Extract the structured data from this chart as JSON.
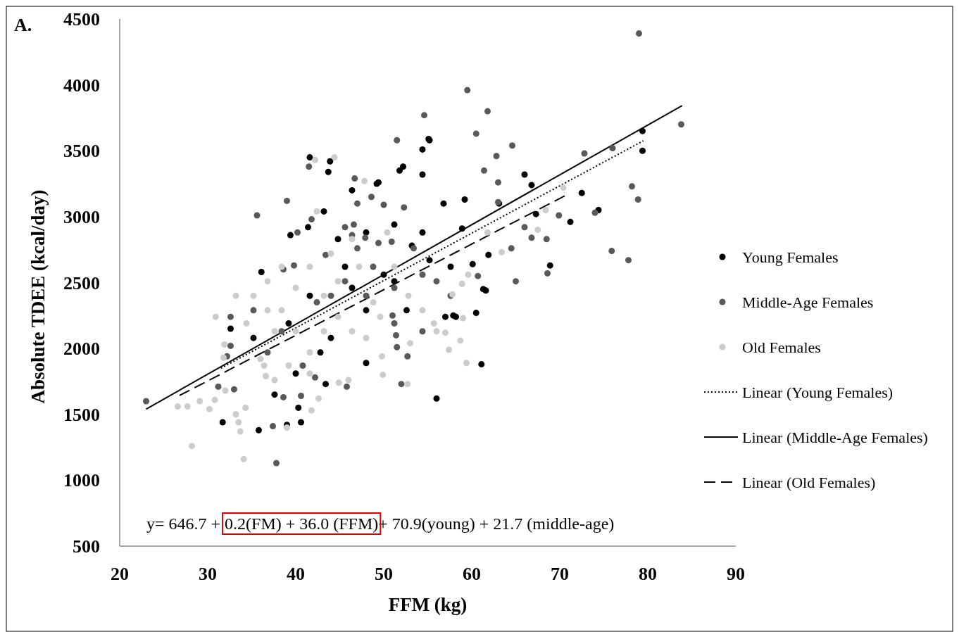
{
  "chart_data": {
    "type": "scatter",
    "title": "A.",
    "xlabel": "FFM (kg)",
    "ylabel": "Absolute TDEE (kcal/day)",
    "xlim": [
      20,
      90
    ],
    "xticks": [
      20,
      30,
      40,
      50,
      60,
      70,
      80,
      90
    ],
    "ylim": [
      500,
      4500
    ],
    "yticks": [
      500,
      1000,
      1500,
      2000,
      2500,
      3000,
      3500,
      4000,
      4500
    ],
    "grid": false,
    "legend": "right",
    "marker": "circle",
    "annotations": [
      "y= 646.7 + 0.2(FM) + 36.0 (FFM)+ 70.9(young) + 21.7 (middle-age)"
    ],
    "series": [
      {
        "name": "Young Females",
        "color": "#000000",
        "x": [
          41.6,
          43.9,
          55.1,
          54.4,
          52.2,
          51.8,
          49.4,
          79.4,
          79.4,
          66.0,
          66.8,
          72.5,
          71.2,
          67.3,
          68.9,
          61.6,
          74.4,
          55.2,
          54.4,
          59.2,
          58.9,
          60.1,
          57.0,
          57.9,
          61.1,
          56.0,
          35.8,
          31.7,
          39.0,
          40.6,
          40.3,
          32.6,
          36.1,
          39.4,
          41.4,
          43.7,
          52.6,
          43.4,
          48.0,
          61.3,
          60.5,
          58.2,
          61.9,
          63.1,
          43.2,
          46.4,
          49.2,
          44.8,
          48.0,
          51.2,
          54.4,
          56.8,
          53.2,
          39.2,
          41.6,
          42.8,
          45.6,
          48.0,
          51.2,
          55.2,
          37.6,
          35.2,
          40.0,
          44.0,
          46.4,
          50.0,
          57.6
        ],
        "values": [
          3450,
          3420,
          3590,
          3510,
          3380,
          3350,
          3260,
          3650,
          3500,
          3320,
          3240,
          3180,
          2960,
          3020,
          2630,
          2440,
          3050,
          3580,
          3320,
          3130,
          2910,
          2640,
          2240,
          2250,
          1880,
          1620,
          1380,
          1440,
          1420,
          1440,
          1550,
          2150,
          2580,
          2860,
          2920,
          3340,
          2290,
          1730,
          1890,
          2450,
          2270,
          2240,
          2710,
          3100,
          3040,
          3200,
          3250,
          2830,
          2880,
          2940,
          2880,
          3100,
          2780,
          2190,
          2400,
          1970,
          2620,
          2290,
          2510,
          2670,
          1650,
          2080,
          1810,
          2080,
          2460,
          2560,
          2620
        ]
      },
      {
        "name": "Middle-Age Females",
        "color": "#595959",
        "x": [
          79.0,
          83.8,
          64.6,
          62.8,
          61.4,
          63.0,
          63.0,
          72.8,
          76.0,
          78.2,
          78.9,
          75.9,
          77.8,
          74.0,
          69.9,
          66.0,
          66.8,
          68.5,
          68.6,
          65.0,
          60.7,
          59.5,
          61.8,
          60.5,
          54.6,
          64.5,
          23.0,
          35.6,
          39.0,
          41.5,
          51.5,
          46.7,
          41.8,
          48.6,
          52.3,
          40.2,
          47.0,
          50.0,
          46.6,
          45.6,
          46.4,
          47.9,
          49.4,
          50.9,
          43.4,
          39.8,
          47.0,
          38.6,
          53.4,
          37.4,
          37.8,
          32.6,
          32.2,
          32.6,
          31.2,
          33.0,
          42.2,
          45.8,
          52.0,
          52.7,
          51.5,
          51.4,
          51.0,
          40.6,
          38.6,
          42.4,
          45.6,
          48.8,
          51.2,
          54.4,
          56.0,
          35.2,
          38.4,
          36.8,
          40.8,
          44.0,
          48.0,
          51.2,
          57.6,
          54.4
        ],
        "values": [
          4390,
          3700,
          3540,
          3460,
          3350,
          3260,
          3110,
          3480,
          3520,
          3230,
          3130,
          2740,
          2670,
          3030,
          3010,
          2920,
          2840,
          2830,
          2570,
          2510,
          2550,
          3960,
          3800,
          3630,
          3770,
          2760,
          1600,
          3010,
          3120,
          3380,
          3580,
          3290,
          2980,
          3150,
          3070,
          2880,
          3100,
          3090,
          2940,
          2920,
          2860,
          2840,
          2800,
          2810,
          2710,
          2630,
          2760,
          2600,
          2760,
          1410,
          1130,
          2240,
          1940,
          2020,
          1710,
          1690,
          1780,
          1710,
          1730,
          1940,
          2010,
          2100,
          2250,
          1640,
          1630,
          2350,
          2510,
          2620,
          2460,
          2560,
          2510,
          2290,
          2130,
          1970,
          1870,
          2400,
          2400,
          2190,
          2400,
          2130
        ]
      },
      {
        "name": "Old Females",
        "color": "#cccccc",
        "x": [
          28.2,
          34.1,
          44.4,
          42.2,
          47.8,
          26.6,
          27.7,
          29.1,
          30.2,
          30.8,
          32.0,
          34.3,
          31.9,
          30.9,
          31.8,
          33.5,
          33.2,
          33.7,
          36.4,
          36.6,
          70.4,
          68.4,
          67.5,
          63.4,
          61.8,
          59.6,
          58.9,
          57.8,
          59.0,
          58.7,
          57.4,
          59.4,
          57.0,
          55.7,
          49.8,
          49.9,
          52.7,
          53.0,
          42.6,
          41.8,
          44.9,
          46.0,
          39.0,
          38.4,
          40.0,
          41.6,
          43.2,
          44.8,
          46.4,
          48.0,
          49.6,
          43.2,
          40.0,
          36.8,
          37.6,
          36.0,
          39.2,
          41.6,
          37.6,
          35.2,
          41.6,
          44.8,
          47.2,
          48.8,
          51.2,
          52.8,
          54.4,
          56.0,
          46.4,
          44.0,
          42.4,
          50.4,
          38.4,
          34.4,
          33.2,
          36.8
        ],
        "values": [
          1260,
          1160,
          3450,
          3430,
          3270,
          1560,
          1560,
          1600,
          1540,
          1610,
          1680,
          1550,
          2030,
          2240,
          1930,
          1440,
          1500,
          1370,
          1870,
          1790,
          3220,
          3050,
          2900,
          2730,
          2880,
          2560,
          2490,
          2410,
          2230,
          2060,
          1990,
          1890,
          2120,
          2190,
          1940,
          1800,
          1730,
          2040,
          1620,
          1530,
          1740,
          1760,
          1400,
          2290,
          2130,
          1970,
          2130,
          2240,
          2130,
          2080,
          2240,
          2400,
          2460,
          2290,
          2130,
          1920,
          1870,
          1810,
          1760,
          2400,
          2620,
          2510,
          2620,
          2350,
          2620,
          2400,
          2290,
          2130,
          2830,
          2720,
          3040,
          2880,
          2620,
          2190,
          2400,
          2510
        ]
      },
      {
        "name": "Linear (Young Females)",
        "type": "line",
        "marker": "none",
        "line_style": "dotted",
        "color": "#000000",
        "x": [
          31.5,
          79.5
        ],
        "values": [
          1850,
          3576
        ]
      },
      {
        "name": "Linear (Middle-Age Females)",
        "type": "line",
        "marker": "none",
        "line_style": "solid",
        "color": "#000000",
        "x": [
          23.0,
          83.9
        ],
        "values": [
          1540,
          3843
        ]
      },
      {
        "name": "Linear (Old Females)",
        "type": "line",
        "marker": "none",
        "line_style": "dashed",
        "color": "#000000",
        "x": [
          26.8,
          70.6
        ],
        "values": [
          1643,
          3159
        ]
      }
    ]
  }
}
